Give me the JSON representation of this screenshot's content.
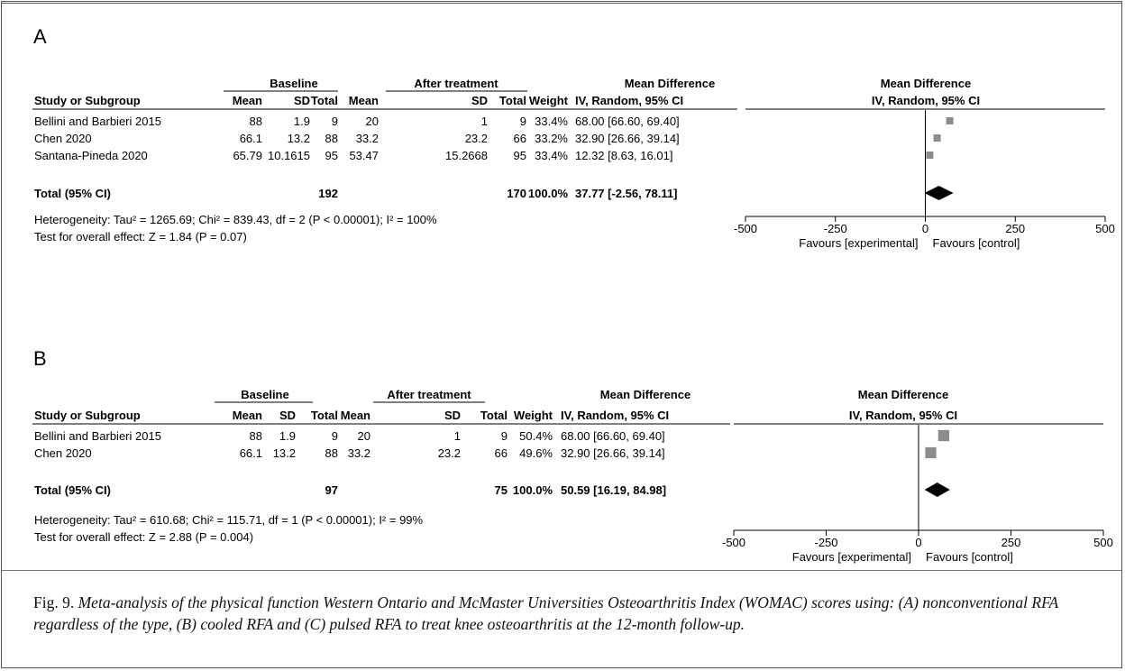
{
  "figure": {
    "caption_label": "Fig. 9.",
    "caption_text": "Meta-analysis of the physical function Western Ontario and McMaster Universities Osteoarthritis Index (WOMAC) scores using: (A) nonconventional RFA regardless of the type, (B) cooled RFA and (C) pulsed RFA to treat knee osteoarthritis  at the 12-month follow-up."
  },
  "chart_data": [
    {
      "type": "forest",
      "panel": "A",
      "group_headers": {
        "left": "Baseline",
        "right": "After treatment",
        "effect": "Mean Difference",
        "plot": "Mean Difference"
      },
      "columns": [
        "Study or Subgroup",
        "Mean",
        "SD",
        "Total",
        "Mean",
        "SD",
        "Total",
        "Weight",
        "IV, Random, 95% CI"
      ],
      "plot_subheader": "IV, Random, 95% CI",
      "studies": [
        {
          "name": "Bellini and Barbieri 2015",
          "mean1": "88",
          "sd1": "1.9",
          "n1": "9",
          "mean2": "20",
          "sd2": "1",
          "n2": "9",
          "weight": "33.4%",
          "ci_text": "68.00 [66.60, 69.40]",
          "md": 68.0,
          "lo": 66.6,
          "hi": 69.4,
          "w": 33.4
        },
        {
          "name": "Chen 2020",
          "mean1": "66.1",
          "sd1": "13.2",
          "n1": "88",
          "mean2": "33.2",
          "sd2": "23.2",
          "n2": "66",
          "weight": "33.2%",
          "ci_text": "32.90 [26.66, 39.14]",
          "md": 32.9,
          "lo": 26.66,
          "hi": 39.14,
          "w": 33.2
        },
        {
          "name": "Santana-Pineda 2020",
          "mean1": "65.79",
          "sd1": "10.1615",
          "n1": "95",
          "mean2": "53.47",
          "sd2": "15.2668",
          "n2": "95",
          "weight": "33.4%",
          "ci_text": "12.32 [8.63, 16.01]",
          "md": 12.32,
          "lo": 8.63,
          "hi": 16.01,
          "w": 33.4
        }
      ],
      "total": {
        "label": "Total (95% CI)",
        "n1": "192",
        "n2": "170",
        "weight": "100.0%",
        "ci_text": "37.77 [-2.56, 78.11]",
        "md": 37.77,
        "lo": -2.56,
        "hi": 78.11
      },
      "heterogeneity": "Heterogeneity: Tau² = 1265.69; Chi² = 839.43, df = 2 (P < 0.00001); I² = 100%",
      "overall": "Test for overall effect: Z = 1.84 (P = 0.07)",
      "xlim": [
        -500,
        500
      ],
      "ticks": [
        -500,
        -250,
        0,
        250,
        500
      ],
      "tick_labels": [
        "-500",
        "-250",
        "0",
        "250",
        "500"
      ],
      "favours_left": "Favours [experimental]",
      "favours_right": "Favours [control]"
    },
    {
      "type": "forest",
      "panel": "B",
      "group_headers": {
        "left": "Baseline",
        "right": "After treatment",
        "effect": "Mean Difference",
        "plot": "Mean Difference"
      },
      "columns": [
        "Study or Subgroup",
        "Mean",
        "SD",
        "Total",
        "Mean",
        "SD",
        "Total",
        "Weight",
        "IV, Random, 95% CI"
      ],
      "plot_subheader": "IV, Random, 95% CI",
      "studies": [
        {
          "name": "Bellini and Barbieri 2015",
          "mean1": "88",
          "sd1": "1.9",
          "n1": "9",
          "mean2": "20",
          "sd2": "1",
          "n2": "9",
          "weight": "50.4%",
          "ci_text": "68.00 [66.60, 69.40]",
          "md": 68.0,
          "lo": 66.6,
          "hi": 69.4,
          "w": 50.4
        },
        {
          "name": "Chen 2020",
          "mean1": "66.1",
          "sd1": "13.2",
          "n1": "88",
          "mean2": "33.2",
          "sd2": "23.2",
          "n2": "66",
          "weight": "49.6%",
          "ci_text": "32.90 [26.66, 39.14]",
          "md": 32.9,
          "lo": 26.66,
          "hi": 39.14,
          "w": 49.6
        }
      ],
      "total": {
        "label": "Total (95% CI)",
        "n1": "97",
        "n2": "75",
        "weight": "100.0%",
        "ci_text": "50.59 [16.19, 84.98]",
        "md": 50.59,
        "lo": 16.19,
        "hi": 84.98
      },
      "heterogeneity": "Heterogeneity: Tau² = 610.68; Chi² = 115.71, df = 1 (P < 0.00001); I² = 99%",
      "overall": "Test for overall effect: Z = 2.88 (P = 0.004)",
      "xlim": [
        -500,
        500
      ],
      "ticks": [
        -500,
        -250,
        0,
        250,
        500
      ],
      "tick_labels": [
        "-500",
        "-250",
        "0",
        "250",
        "500"
      ],
      "favours_left": "Favours [experimental]",
      "favours_right": "Favours [control]"
    }
  ]
}
